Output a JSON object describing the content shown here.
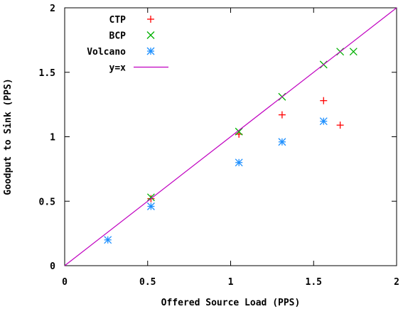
{
  "chart_data": {
    "type": "scatter",
    "xlabel": "Offered Source Load (PPS)",
    "ylabel": "Goodput to Sink (PPS)",
    "xlim": [
      0,
      2
    ],
    "ylim": [
      0,
      2
    ],
    "x_ticks": [
      "0",
      "0.5",
      "1",
      "1.5",
      "2"
    ],
    "y_ticks": [
      "0",
      "0.5",
      "1",
      "1.5",
      "2"
    ],
    "grid": false,
    "legend_placement": "top-left",
    "series": [
      {
        "name": "CTP",
        "marker": "plus",
        "color": "#ff0000",
        "points": [
          [
            0.52,
            0.52
          ],
          [
            1.05,
            1.02
          ],
          [
            1.31,
            1.17
          ],
          [
            1.56,
            1.28
          ],
          [
            1.66,
            1.09
          ]
        ]
      },
      {
        "name": "BCP",
        "marker": "cross",
        "color": "#00b000",
        "points": [
          [
            0.52,
            0.53
          ],
          [
            1.05,
            1.04
          ],
          [
            1.31,
            1.31
          ],
          [
            1.56,
            1.56
          ],
          [
            1.66,
            1.66
          ],
          [
            1.74,
            1.66
          ]
        ]
      },
      {
        "name": "Volcano",
        "marker": "star",
        "color": "#1e90ff",
        "points": [
          [
            0.26,
            0.2
          ],
          [
            0.52,
            0.46
          ],
          [
            1.05,
            0.8
          ],
          [
            1.31,
            0.96
          ],
          [
            1.56,
            1.12
          ]
        ]
      },
      {
        "name": "y=x",
        "marker": "line",
        "color": "#c000c0",
        "points": [
          [
            0,
            0
          ],
          [
            2,
            2
          ]
        ]
      }
    ]
  }
}
